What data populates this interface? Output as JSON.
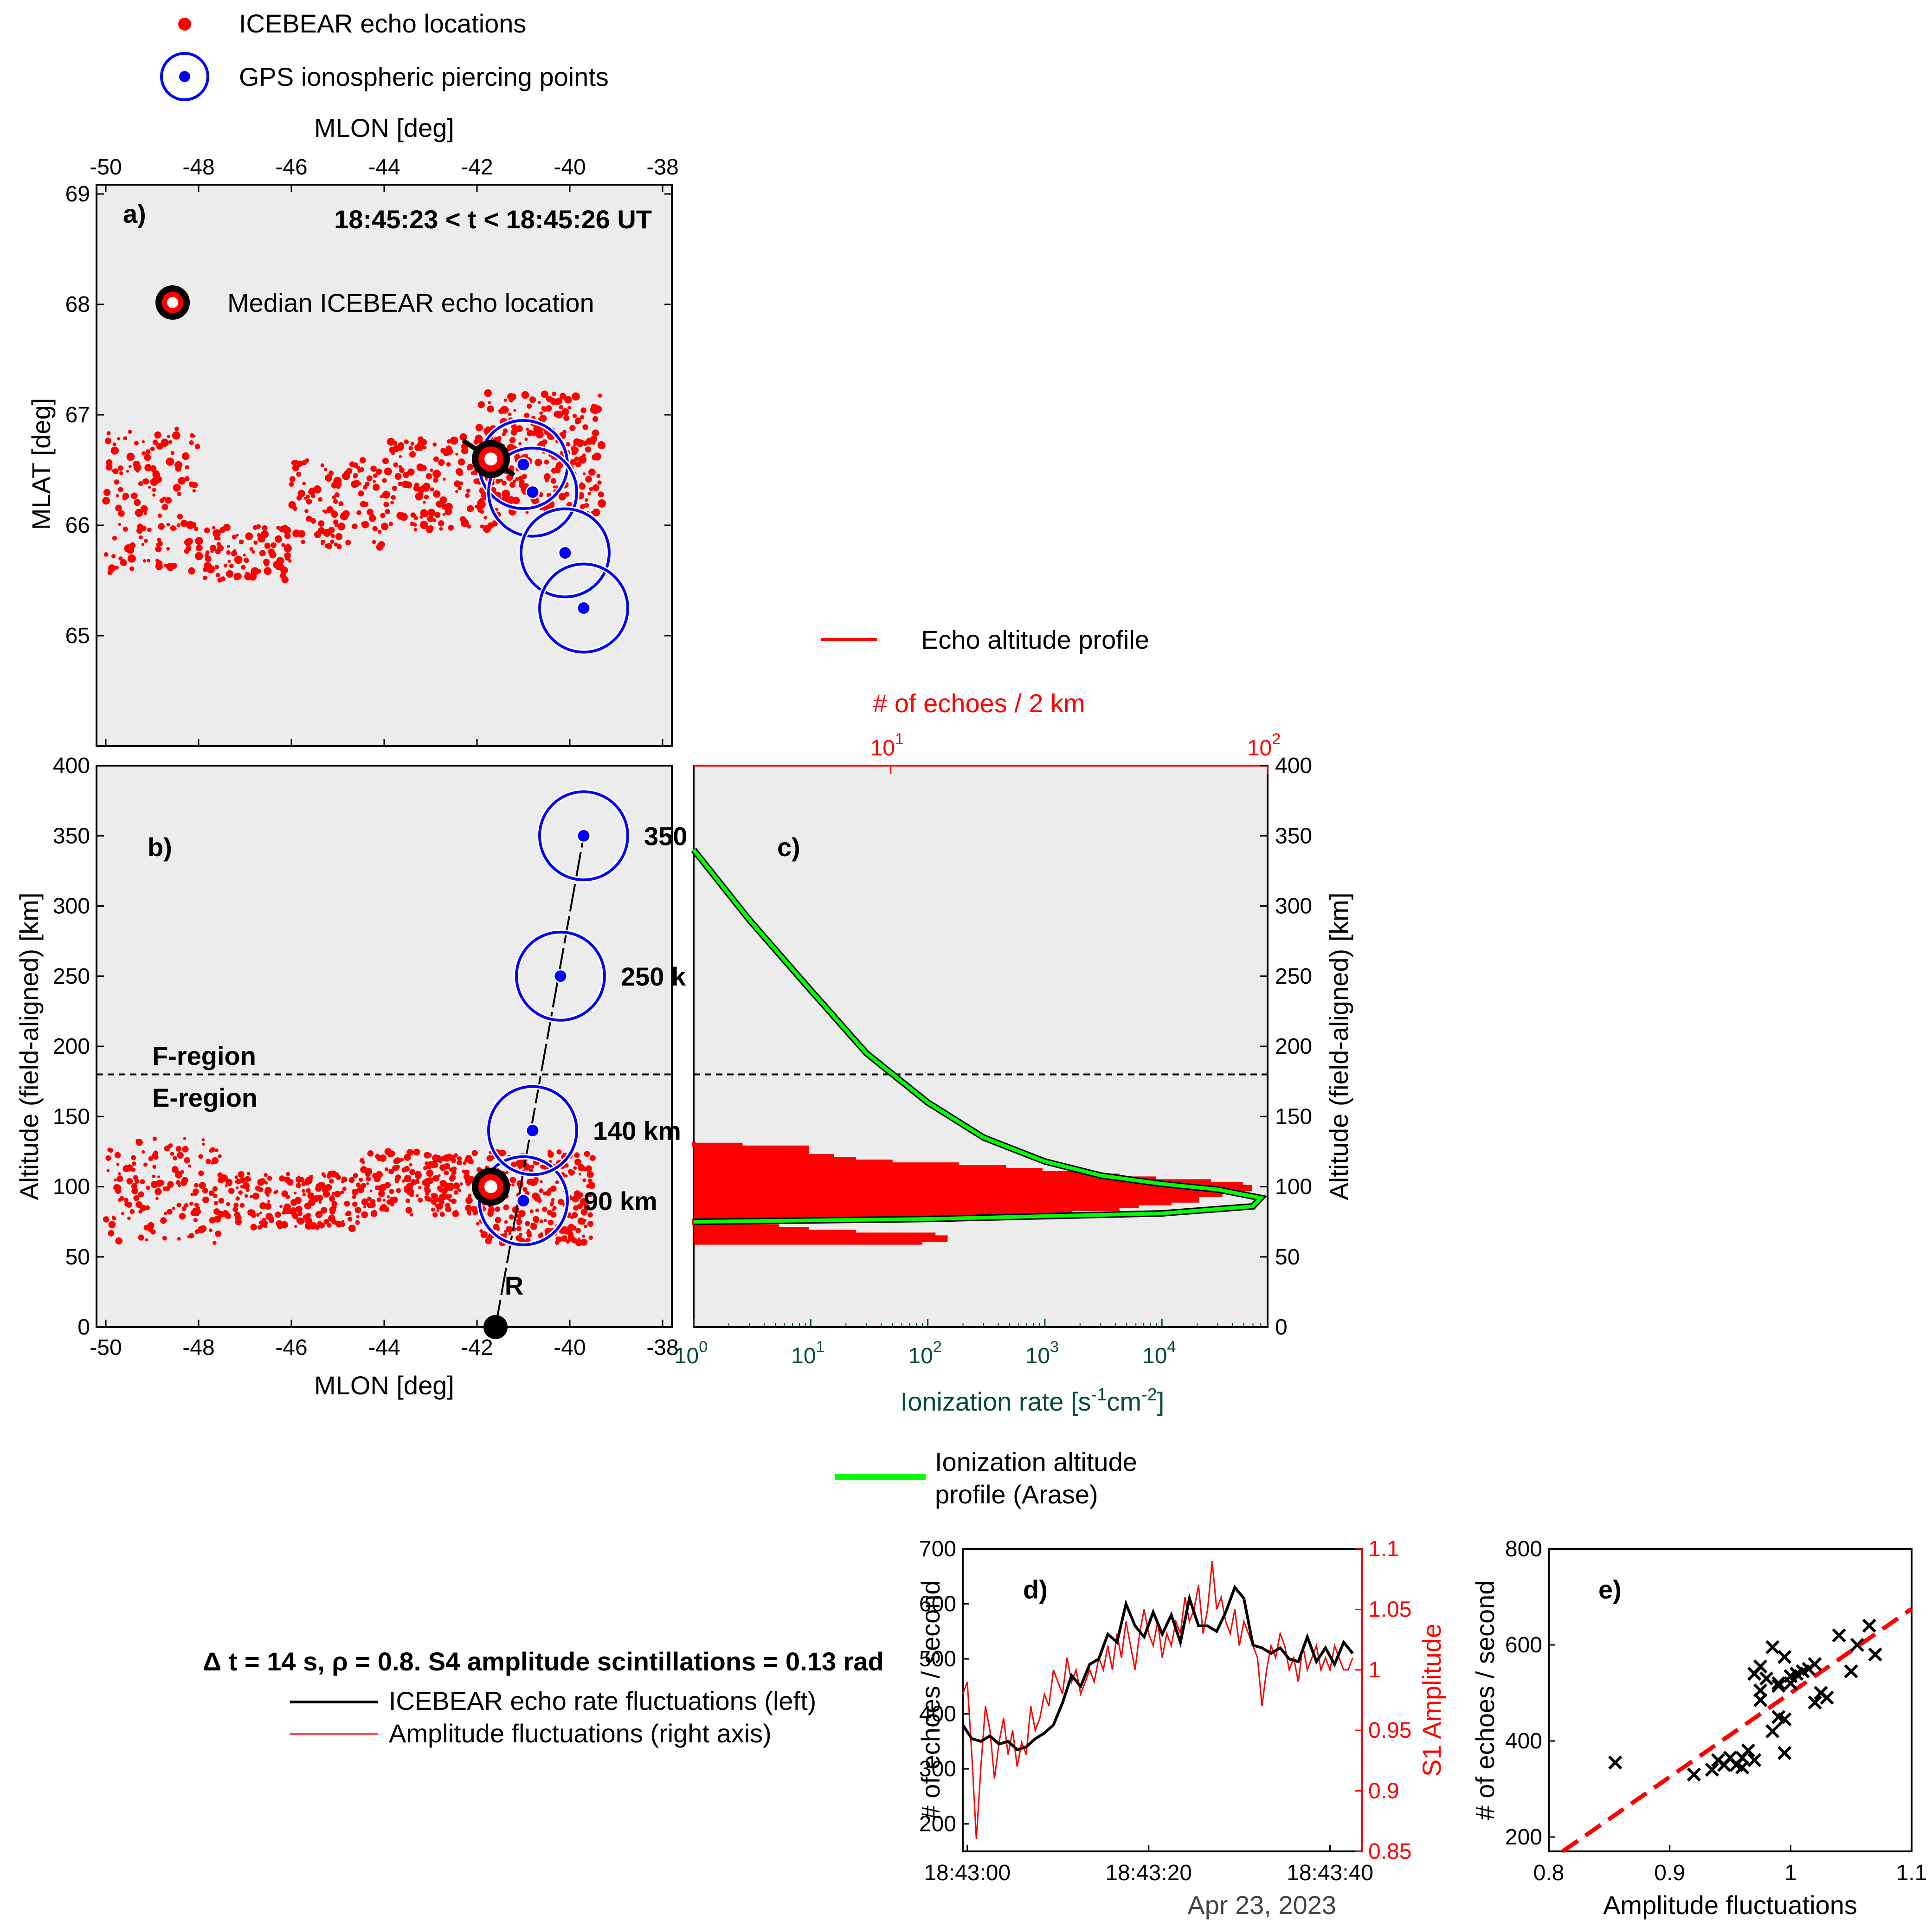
{
  "legend_top": {
    "echo_label": "ICEBEAR echo locations",
    "gps_label": "GPS ionospheric piercing points"
  },
  "colors": {
    "echo": "#ff0000",
    "gps": "#0000ff",
    "ionization": "#00ff00",
    "axes_bg": "#ececec"
  },
  "chart_data": [
    {
      "panel": "a)",
      "type": "scatter",
      "title": "18:45:23   < t <  18:45:26 UT",
      "xlabel": "MLON [deg]",
      "ylabel": "MLAT [deg]",
      "xlim": [
        -50,
        -38
      ],
      "ylim": [
        64,
        69
      ],
      "xticks": [
        "-50",
        "-48",
        "-46",
        "-44",
        "-42",
        "-40",
        "-38"
      ],
      "yticks": [
        "65",
        "66",
        "67",
        "68",
        "69"
      ],
      "legend": "Median ICEBEAR echo location",
      "median_echo": {
        "x": -41.7,
        "y": 66.6
      },
      "gps_points": [
        {
          "x": -41.0,
          "y": 66.55
        },
        {
          "x": -40.8,
          "y": 66.3
        },
        {
          "x": -40.1,
          "y": 65.75
        },
        {
          "x": -39.7,
          "y": 65.25
        }
      ],
      "echo_clusters": [
        {
          "x": [
            -50.0,
            -48.0
          ],
          "y": [
            65.55,
            66.9
          ],
          "n": 140
        },
        {
          "x": [
            -48.0,
            -46.0
          ],
          "y": [
            65.5,
            66.0
          ],
          "n": 90
        },
        {
          "x": [
            -46.0,
            -44.0
          ],
          "y": [
            65.8,
            66.6
          ],
          "n": 110
        },
        {
          "x": [
            -44.0,
            -41.5
          ],
          "y": [
            65.95,
            66.8
          ],
          "n": 160
        },
        {
          "x": [
            -42.0,
            -39.3
          ],
          "y": [
            66.1,
            67.2
          ],
          "n": 260
        }
      ]
    },
    {
      "panel": "b)",
      "type": "scatter",
      "xlabel": "MLON [deg]",
      "ylabel": "Altitude (field-aligned) [km]",
      "xlim": [
        -50,
        -38
      ],
      "ylim": [
        0,
        400
      ],
      "xticks": [
        "-50",
        "-48",
        "-46",
        "-44",
        "-42",
        "-40",
        "-38"
      ],
      "yticks": [
        "0",
        "50",
        "100",
        "150",
        "200",
        "250",
        "300",
        "350",
        "400"
      ],
      "region_boundary_km": 180,
      "region_labels": [
        "F-region",
        "E-region"
      ],
      "receiver_label": "R",
      "receiver": {
        "x": -41.6,
        "y": 0
      },
      "median_echo": {
        "x": -41.7,
        "y": 100
      },
      "gps_points": [
        {
          "x": -41.0,
          "y": 90,
          "label": "90 km"
        },
        {
          "x": -40.8,
          "y": 140,
          "label": "140 km"
        },
        {
          "x": -40.2,
          "y": 250,
          "label": "250 k"
        },
        {
          "x": -39.7,
          "y": 350,
          "label": "350"
        }
      ],
      "echo_clusters": [
        {
          "x": [
            -50.0,
            -47.5
          ],
          "y": [
            60,
            135
          ],
          "n": 150
        },
        {
          "x": [
            -47.5,
            -44.5
          ],
          "y": [
            70,
            110
          ],
          "n": 180
        },
        {
          "x": [
            -44.5,
            -42.0
          ],
          "y": [
            80,
            125
          ],
          "n": 200
        },
        {
          "x": [
            -42.0,
            -39.5
          ],
          "y": [
            60,
            125
          ],
          "n": 260
        }
      ]
    },
    {
      "panel": "c)",
      "type": "line",
      "xlabel": "Ionization rate [s^-1 cm^-2]",
      "ylabel": "Altitude (field-aligned) [km]",
      "top_xlabel": "# of echoes / 2 km",
      "xscale": "log",
      "xlim": [
        1,
        80000
      ],
      "ylim": [
        0,
        400
      ],
      "xticks": [
        "10^0",
        "10^1",
        "10^2",
        "10^3",
        "10^4"
      ],
      "top_xticks": [
        "10^1",
        "10^2"
      ],
      "top_xlim": [
        3,
        100
      ],
      "yticks": [
        "0",
        "50",
        "100",
        "150",
        "200",
        "250",
        "300",
        "350",
        "400"
      ],
      "region_boundary_km": 180,
      "series": [
        {
          "name": "Ionization altitude profile (Arase)",
          "x": [
            1,
            3,
            10,
            30,
            100,
            300,
            1000,
            3000,
            10000,
            30000,
            70000,
            60000,
            10000,
            1000,
            100,
            10,
            1
          ],
          "y": [
            340,
            290,
            240,
            195,
            160,
            135,
            118,
            108,
            102,
            98,
            92,
            86,
            81,
            79,
            77,
            76,
            75
          ]
        },
        {
          "name": "Echo altitude profile",
          "bins_top_axis": [
            {
              "y": 61,
              "x": 12
            },
            {
              "y": 63,
              "x": 14
            },
            {
              "y": 65,
              "x": 13
            },
            {
              "y": 67,
              "x": 8
            },
            {
              "y": 69,
              "x": 6
            },
            {
              "y": 71,
              "x": 5
            },
            {
              "y": 73,
              "x": 4
            },
            {
              "y": 75,
              "x": 3
            },
            {
              "y": 77,
              "x": 10
            },
            {
              "y": 79,
              "x": 20
            },
            {
              "y": 81,
              "x": 25
            },
            {
              "y": 83,
              "x": 30
            },
            {
              "y": 85,
              "x": 40
            },
            {
              "y": 87,
              "x": 45
            },
            {
              "y": 89,
              "x": 55
            },
            {
              "y": 91,
              "x": 65
            },
            {
              "y": 93,
              "x": 60
            },
            {
              "y": 95,
              "x": 75
            },
            {
              "y": 97,
              "x": 80
            },
            {
              "y": 99,
              "x": 90
            },
            {
              "y": 101,
              "x": 85
            },
            {
              "y": 103,
              "x": 70
            },
            {
              "y": 105,
              "x": 50
            },
            {
              "y": 107,
              "x": 40
            },
            {
              "y": 109,
              "x": 35
            },
            {
              "y": 111,
              "x": 25
            },
            {
              "y": 113,
              "x": 20
            },
            {
              "y": 115,
              "x": 15
            },
            {
              "y": 117,
              "x": 10
            },
            {
              "y": 119,
              "x": 8
            },
            {
              "y": 121,
              "x": 7
            },
            {
              "y": 123,
              "x": 6
            },
            {
              "y": 125,
              "x": 4
            },
            {
              "y": 127,
              "x": 6
            },
            {
              "y": 129,
              "x": 4
            },
            {
              "y": 131,
              "x": 3
            }
          ]
        }
      ],
      "legend_top": "Echo altitude profile",
      "legend_bottom": [
        "Ionization altitude",
        "profile (Arase)"
      ]
    },
    {
      "panel": "d)",
      "type": "line",
      "xlabel": "Apr 23, 2023",
      "ylabel": "# of echoes / second",
      "y2label": "S1 Amplitude",
      "xlim": [
        0,
        44
      ],
      "ylim": [
        150,
        700
      ],
      "y2lim": [
        0.85,
        1.1
      ],
      "xticks": [
        "18:43:00",
        "18:43:20",
        "18:43:40"
      ],
      "yticks": [
        "200",
        "300",
        "400",
        "500",
        "600",
        "700"
      ],
      "y2ticks": [
        "0.85",
        "0.9",
        "0.95",
        "1",
        "1.05",
        "1.1"
      ],
      "series": [
        {
          "name": "ICEBEAR echo rate fluctuations (left)",
          "x": [
            0,
            1,
            2,
            3,
            4,
            5,
            6,
            7,
            8,
            9,
            10,
            11,
            12,
            13,
            14,
            15,
            16,
            17,
            18,
            19,
            20,
            21,
            22,
            23,
            24,
            25,
            26,
            27,
            28,
            29,
            30,
            31,
            32,
            33,
            34,
            35,
            36,
            37,
            38,
            39,
            40,
            41,
            42,
            43
          ],
          "y": [
            380,
            355,
            350,
            360,
            345,
            350,
            335,
            340,
            355,
            365,
            380,
            420,
            470,
            450,
            490,
            500,
            545,
            530,
            600,
            560,
            540,
            585,
            545,
            580,
            530,
            610,
            560,
            560,
            550,
            585,
            630,
            610,
            525,
            520,
            510,
            520,
            500,
            495,
            540,
            495,
            520,
            490,
            530,
            510
          ]
        },
        {
          "name": "Amplitude fluctuations (right axis)",
          "x": [
            0,
            0.5,
            1,
            1.5,
            2,
            2.5,
            3,
            3.5,
            4,
            4.5,
            5,
            5.5,
            6,
            6.5,
            7,
            7.5,
            8,
            8.5,
            9,
            9.5,
            10,
            10.5,
            11,
            11.5,
            12,
            12.5,
            13,
            13.5,
            14,
            14.5,
            15,
            15.5,
            16,
            16.5,
            17,
            17.5,
            18,
            18.5,
            19,
            19.5,
            20,
            20.5,
            21,
            21.5,
            22,
            22.5,
            23,
            23.5,
            24,
            24.5,
            25,
            25.5,
            26,
            26.5,
            27,
            27.5,
            28,
            28.5,
            29,
            29.5,
            30,
            30.5,
            31,
            31.5,
            32,
            32.5,
            33,
            33.5,
            34,
            34.5,
            35,
            35.5,
            36,
            36.5,
            37,
            37.5,
            38,
            38.5,
            39,
            39.5,
            40,
            40.5,
            41,
            41.5,
            42,
            42.5,
            43
          ],
          "y": [
            0.98,
            0.99,
            0.93,
            0.86,
            0.92,
            0.97,
            0.95,
            0.91,
            0.94,
            0.96,
            0.93,
            0.95,
            0.92,
            0.94,
            0.93,
            0.97,
            0.95,
            0.96,
            0.98,
            0.97,
            1.0,
            0.99,
            0.98,
            1.01,
            0.99,
            1.0,
            0.98,
            0.99,
            1.0,
            0.99,
            1.01,
            1.0,
            1.02,
            1.0,
            1.03,
            1.01,
            1.04,
            1.02,
            1.0,
            1.03,
            1.05,
            1.03,
            1.02,
            1.04,
            1.01,
            1.03,
            1.02,
            1.04,
            1.03,
            1.06,
            1.04,
            1.05,
            1.07,
            1.03,
            1.05,
            1.09,
            1.05,
            1.06,
            1.04,
            1.03,
            1.05,
            1.02,
            1.04,
            1.03,
            1.02,
            1.01,
            0.97,
            1.0,
            1.02,
            1.01,
            1.03,
            1.02,
            1.0,
            1.01,
            0.99,
            1.02,
            1.0,
            1.01,
            1.02,
            1.0,
            1.01,
            1.0,
            1.02,
            1.01,
            1.0,
            1.0,
            1.01
          ]
        }
      ]
    },
    {
      "panel": "e)",
      "type": "scatter",
      "xlabel": "Amplitude fluctuations",
      "ylabel": "# of echoes / second",
      "xlim": [
        0.8,
        1.1
      ],
      "ylim": [
        170,
        800
      ],
      "xticks": [
        "0.8",
        "0.9",
        "1",
        "1.1"
      ],
      "yticks": [
        "200",
        "400",
        "600",
        "800"
      ],
      "points": {
        "x": [
          0.855,
          0.92,
          0.935,
          0.94,
          0.945,
          0.95,
          0.955,
          0.96,
          0.965,
          0.97,
          0.975,
          0.97,
          0.98,
          0.985,
          0.99,
          0.995,
          1.0,
          1.005,
          0.99,
          0.995,
          1.01,
          1.02,
          1.025,
          1.03,
          1.04,
          1.05,
          1.055,
          1.065,
          1.07,
          0.975,
          0.985,
          0.96,
          0.995,
          1.0,
          1.02,
          0.975,
          0.99,
          1.005,
          1.015
        ],
        "y": [
          355,
          330,
          340,
          360,
          350,
          365,
          350,
          345,
          380,
          360,
          555,
          540,
          530,
          595,
          520,
          575,
          535,
          540,
          450,
          375,
          545,
          560,
          500,
          490,
          620,
          545,
          600,
          640,
          580,
          505,
          420,
          365,
          445,
          520,
          480,
          485,
          515,
          540,
          550
        ]
      },
      "fit_line": {
        "x": [
          0.8,
          1.1
        ],
        "y": [
          150,
          675
        ]
      }
    }
  ],
  "panel_d_legend": {
    "stats": "Δ t =  14  s, ρ =  0.8. S4 amplitude scintillations =  0.13 rad",
    "black_label": "ICEBEAR echo rate fluctuations (left)",
    "red_label": "Amplitude fluctuations (right axis)"
  }
}
